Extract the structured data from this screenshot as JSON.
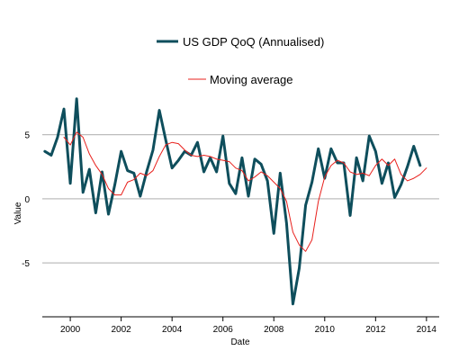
{
  "chart_data": {
    "type": "line",
    "title": "",
    "xlabel": "Date",
    "ylabel": "Value",
    "xlim": [
      1998.9,
      2014.5
    ],
    "ylim": [
      -9.2,
      6.8
    ],
    "xticks": [
      2000,
      2002,
      2004,
      2006,
      2008,
      2010,
      2012,
      2014
    ],
    "xtick_labels": [
      "2000",
      "2002",
      "2004",
      "2006",
      "2008",
      "2010",
      "2012",
      "2014"
    ],
    "yticks": [
      5,
      0,
      -5
    ],
    "ytick_labels": [
      "5",
      "0",
      "-5"
    ],
    "grid": {
      "y": true,
      "x": false
    },
    "legend_position": "top-center",
    "series": [
      {
        "name": "US GDP QoQ (Annualised)",
        "color": "#0e4e5c",
        "x": [
          1999.0,
          1999.25,
          1999.5,
          1999.75,
          2000.0,
          2000.25,
          2000.5,
          2000.75,
          2001.0,
          2001.25,
          2001.5,
          2001.75,
          2002.0,
          2002.25,
          2002.5,
          2002.75,
          2003.0,
          2003.25,
          2003.5,
          2003.75,
          2004.0,
          2004.25,
          2004.5,
          2004.75,
          2005.0,
          2005.25,
          2005.5,
          2005.75,
          2006.0,
          2006.25,
          2006.5,
          2006.75,
          2007.0,
          2007.25,
          2007.5,
          2007.75,
          2008.0,
          2008.25,
          2008.5,
          2008.75,
          2009.0,
          2009.25,
          2009.5,
          2009.75,
          2010.0,
          2010.25,
          2010.5,
          2010.75,
          2011.0,
          2011.25,
          2011.5,
          2011.75,
          2012.0,
          2012.25,
          2012.5,
          2012.75,
          2013.0,
          2013.25,
          2013.5,
          2013.75,
          2014.0
        ],
        "y": [
          3.7,
          3.4,
          4.8,
          7.0,
          1.2,
          7.8,
          0.5,
          2.3,
          -1.1,
          2.1,
          -1.2,
          1.1,
          3.7,
          2.2,
          2.0,
          0.2,
          2.1,
          3.8,
          6.9,
          4.6,
          2.4,
          3.0,
          3.7,
          3.4,
          4.4,
          2.1,
          3.2,
          2.1,
          4.9,
          1.2,
          0.4,
          3.2,
          0.2,
          3.1,
          2.7,
          1.4,
          -2.7,
          2.0,
          -1.9,
          -8.2,
          -5.4,
          -0.5,
          1.3,
          3.9,
          1.6,
          3.9,
          2.8,
          2.8,
          -1.3,
          3.2,
          1.4,
          4.9,
          3.7,
          1.2,
          2.8,
          0.1,
          1.1,
          2.5,
          4.1,
          2.6,
          null
        ],
        "stroke_width": 3
      },
      {
        "name": "Moving average",
        "color": "#e8201c",
        "x": [
          1999.75,
          2000.0,
          2000.25,
          2000.5,
          2000.75,
          2001.0,
          2001.25,
          2001.5,
          2001.75,
          2002.0,
          2002.25,
          2002.5,
          2002.75,
          2003.0,
          2003.25,
          2003.5,
          2003.75,
          2004.0,
          2004.25,
          2004.5,
          2004.75,
          2005.0,
          2005.25,
          2005.5,
          2005.75,
          2006.0,
          2006.25,
          2006.5,
          2006.75,
          2007.0,
          2007.25,
          2007.5,
          2007.75,
          2008.0,
          2008.25,
          2008.5,
          2008.75,
          2009.0,
          2009.25,
          2009.5,
          2009.75,
          2010.0,
          2010.25,
          2010.5,
          2010.75,
          2011.0,
          2011.25,
          2011.5,
          2011.75,
          2012.0,
          2012.25,
          2012.5,
          2012.75,
          2013.0,
          2013.25,
          2013.5,
          2013.75,
          2014.0
        ],
        "y": [
          4.8,
          4.2,
          5.2,
          4.8,
          3.5,
          2.6,
          1.9,
          0.8,
          0.3,
          0.3,
          1.3,
          1.5,
          2.0,
          1.8,
          2.2,
          3.3,
          4.2,
          4.4,
          4.3,
          3.8,
          3.4,
          3.3,
          3.4,
          3.3,
          3.1,
          3.0,
          2.9,
          2.4,
          2.2,
          1.4,
          1.7,
          2.1,
          1.8,
          1.3,
          0.8,
          -0.2,
          -2.6,
          -3.6,
          -4.1,
          -3.2,
          -0.2,
          1.7,
          2.6,
          3.0,
          2.8,
          2.1,
          1.9,
          2.0,
          1.8,
          2.6,
          3.1,
          2.6,
          3.1,
          1.9,
          1.4,
          1.6,
          1.9,
          2.4
        ],
        "stroke_width": 1
      }
    ]
  }
}
